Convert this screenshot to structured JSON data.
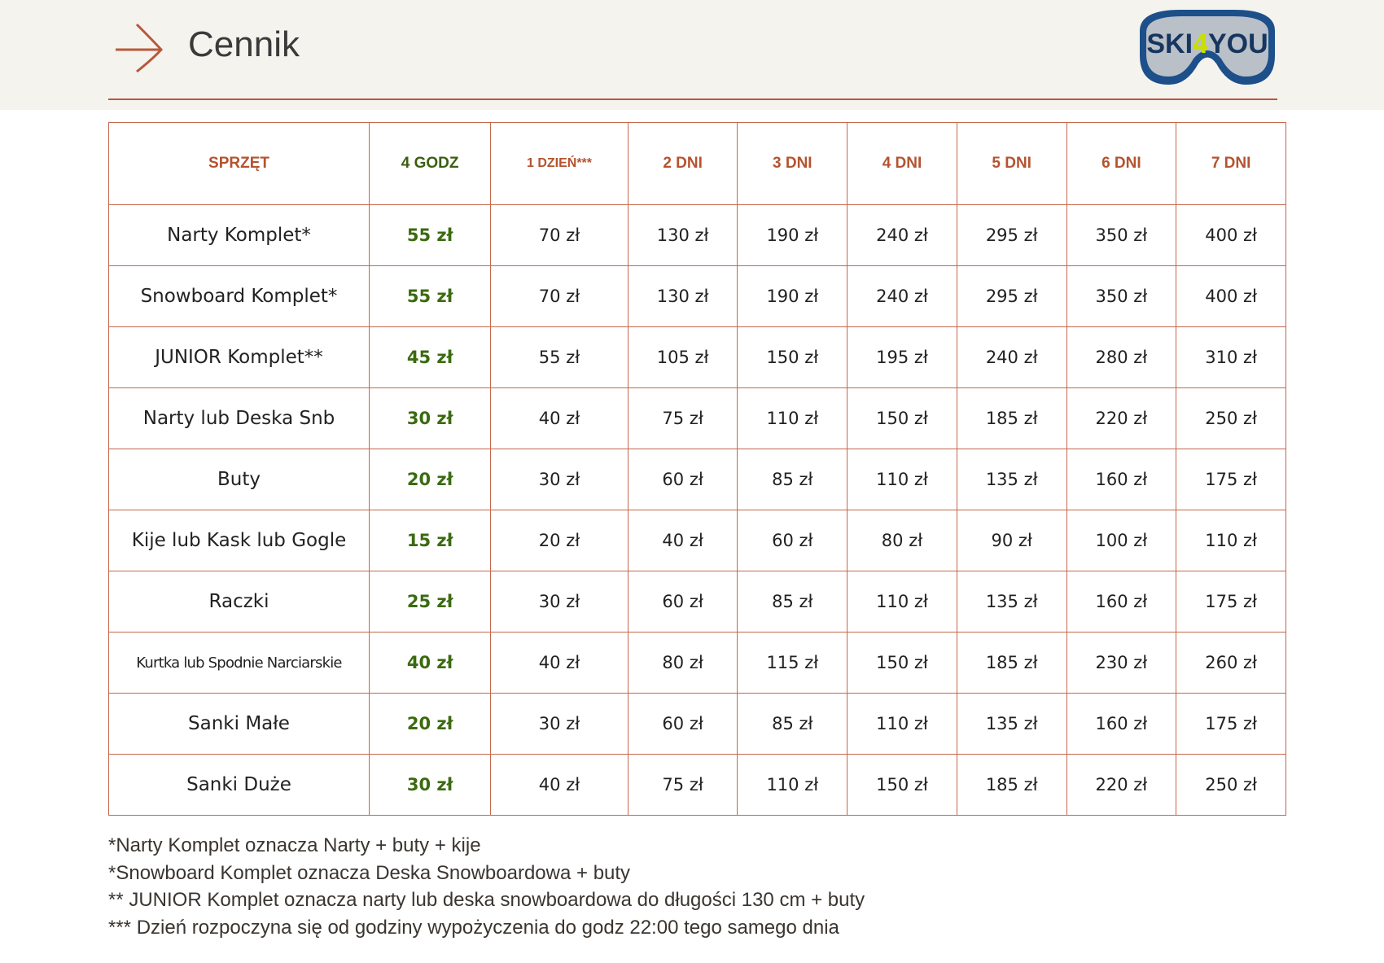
{
  "header": {
    "title": "Cennik",
    "logo_text": "SKI4YOU"
  },
  "colors": {
    "accent": "#b8583a",
    "green": "#3b6a10",
    "header_bg": "#f4f3ee"
  },
  "table": {
    "columns": [
      "SPRZĘT",
      "4 GODZ",
      "1 DZIEŃ***",
      "2 DNI",
      "3 DNI",
      "4 DNI",
      "5 DNI",
      "6 DNI",
      "7 DNI"
    ],
    "rows": [
      [
        "Narty Komplet*",
        "55 zł",
        "70 zł",
        "130 zł",
        "190 zł",
        "240 zł",
        "295 zł",
        "350 zł",
        "400 zł"
      ],
      [
        "Snowboard Komplet*",
        "55 zł",
        "70 zł",
        "130 zł",
        "190 zł",
        "240 zł",
        "295 zł",
        "350 zł",
        "400 zł"
      ],
      [
        "JUNIOR Komplet**",
        "45 zł",
        "55 zł",
        "105 zł",
        "150 zł",
        "195 zł",
        "240 zł",
        "280 zł",
        "310 zł"
      ],
      [
        "Narty lub Deska Snb",
        "30 zł",
        "40 zł",
        "75 zł",
        "110 zł",
        "150 zł",
        "185 zł",
        "220 zł",
        "250 zł"
      ],
      [
        "Buty",
        "20 zł",
        "30 zł",
        "60 zł",
        "85 zł",
        "110 zł",
        "135 zł",
        "160 zł",
        "175 zł"
      ],
      [
        "Kije lub Kask lub Gogle",
        "15 zł",
        "20 zł",
        "40 zł",
        "60 zł",
        "80 zł",
        "90 zł",
        "100 zł",
        "110 zł"
      ],
      [
        "Raczki",
        "25 zł",
        "30 zł",
        "60 zł",
        "85 zł",
        "110 zł",
        "135 zł",
        "160 zł",
        "175 zł"
      ],
      [
        "Kurtka lub Spodnie Narciarskie",
        "40 zł",
        "40 zł",
        "80 zł",
        "115 zł",
        "150 zł",
        "185 zł",
        "230 zł",
        "260 zł"
      ],
      [
        "Sanki Małe",
        "20 zł",
        "30 zł",
        "60 zł",
        "85 zł",
        "110 zł",
        "135 zł",
        "160 zł",
        "175 zł"
      ],
      [
        "Sanki Duże",
        "30 zł",
        "40 zł",
        "75 zł",
        "110 zł",
        "150 zł",
        "185 zł",
        "220 zł",
        "250 zł"
      ]
    ]
  },
  "notes": [
    "*Narty Komplet oznacza Narty + buty + kije",
    "*Snowboard Komplet oznacza Deska Snowboardowa + buty",
    "** JUNIOR Komplet oznacza narty lub deska snowboardowa do długości 130 cm + buty",
    "*** Dzień rozpoczyna się od godziny wypożyczenia do godz 22:00 tego samego dnia"
  ]
}
